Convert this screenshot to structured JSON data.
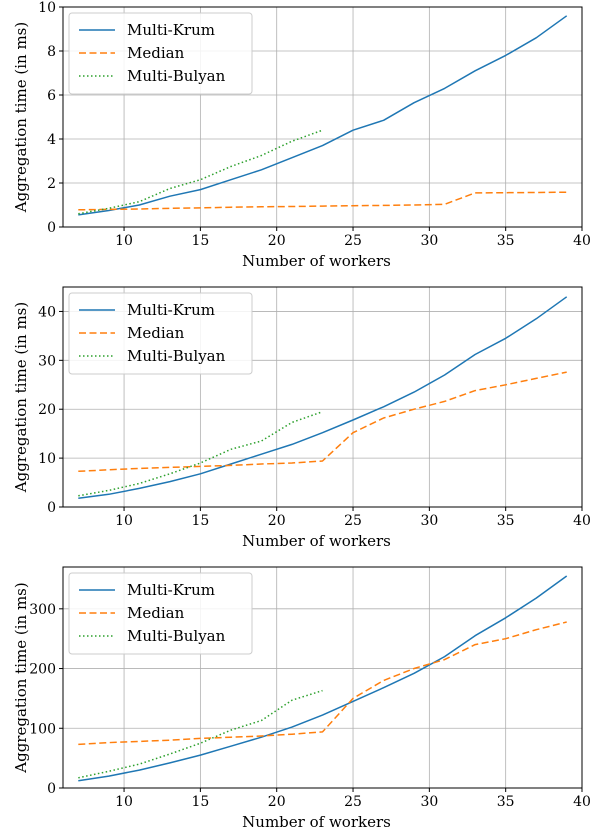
{
  "chart_data": [
    {
      "type": "line",
      "xlabel": "Number of workers",
      "ylabel": "Aggregation time (in ms)",
      "xlim": [
        6,
        40
      ],
      "ylim": [
        0,
        10
      ],
      "xticks": [
        10,
        15,
        20,
        25,
        30,
        35,
        40
      ],
      "yticks": [
        0,
        2,
        4,
        6,
        8,
        10
      ],
      "grid": true,
      "legend_position": "top-left",
      "series": [
        {
          "name": "Multi-Krum",
          "color": "#1f77b4",
          "style": "solid",
          "x": [
            7,
            9,
            11,
            13,
            15,
            17,
            19,
            21,
            23,
            25,
            27,
            29,
            31,
            33,
            35,
            37,
            39
          ],
          "y": [
            0.55,
            0.75,
            1.0,
            1.4,
            1.7,
            2.15,
            2.6,
            3.15,
            3.7,
            4.4,
            4.85,
            5.65,
            6.3,
            7.1,
            7.8,
            8.6,
            9.6
          ]
        },
        {
          "name": "Median",
          "color": "#ff7f0e",
          "style": "dashed",
          "x": [
            7,
            9,
            11,
            13,
            15,
            17,
            19,
            21,
            23,
            25,
            27,
            29,
            31,
            33,
            35,
            37,
            39
          ],
          "y": [
            0.78,
            0.8,
            0.82,
            0.85,
            0.87,
            0.9,
            0.92,
            0.93,
            0.95,
            0.97,
            0.98,
            1.0,
            1.03,
            1.55,
            1.56,
            1.57,
            1.58
          ]
        },
        {
          "name": "Multi-Bulyan",
          "color": "#2ca02c",
          "style": "dotted",
          "x": [
            7,
            9,
            11,
            13,
            15,
            17,
            19,
            21,
            23
          ],
          "y": [
            0.6,
            0.85,
            1.15,
            1.75,
            2.15,
            2.75,
            3.25,
            3.9,
            4.4
          ]
        }
      ]
    },
    {
      "type": "line",
      "xlabel": "Number of workers",
      "ylabel": "Aggregation time (in ms)",
      "xlim": [
        6,
        40
      ],
      "ylim": [
        0,
        45
      ],
      "xticks": [
        10,
        15,
        20,
        25,
        30,
        35,
        40
      ],
      "yticks": [
        0,
        10,
        20,
        30,
        40
      ],
      "grid": true,
      "legend_position": "top-left",
      "series": [
        {
          "name": "Multi-Krum",
          "color": "#1f77b4",
          "style": "solid",
          "x": [
            7,
            9,
            11,
            13,
            15,
            17,
            19,
            21,
            23,
            25,
            27,
            29,
            31,
            33,
            35,
            37,
            39
          ],
          "y": [
            1.8,
            2.6,
            3.8,
            5.2,
            6.8,
            8.8,
            10.8,
            12.8,
            15.2,
            17.8,
            20.5,
            23.5,
            27.0,
            31.2,
            34.5,
            38.5,
            43.0
          ]
        },
        {
          "name": "Median",
          "color": "#ff7f0e",
          "style": "dashed",
          "x": [
            7,
            9,
            11,
            13,
            15,
            17,
            19,
            21,
            23,
            25,
            27,
            29,
            31,
            33,
            35,
            37,
            39
          ],
          "y": [
            7.3,
            7.6,
            7.9,
            8.1,
            8.3,
            8.5,
            8.8,
            9.0,
            9.4,
            15.2,
            18.2,
            20.0,
            21.6,
            23.8,
            25.0,
            26.3,
            27.6
          ]
        },
        {
          "name": "Multi-Bulyan",
          "color": "#2ca02c",
          "style": "dotted",
          "x": [
            7,
            9,
            11,
            13,
            15,
            17,
            19,
            21,
            23
          ],
          "y": [
            2.3,
            3.4,
            4.8,
            6.8,
            9.0,
            11.8,
            13.5,
            17.3,
            19.5
          ]
        }
      ]
    },
    {
      "type": "line",
      "xlabel": "Number of workers",
      "ylabel": "Aggregation time (in ms)",
      "xlim": [
        6,
        40
      ],
      "ylim": [
        0,
        370
      ],
      "xticks": [
        10,
        15,
        20,
        25,
        30,
        35,
        40
      ],
      "yticks": [
        0,
        100,
        200,
        300
      ],
      "grid": true,
      "legend_position": "top-left",
      "series": [
        {
          "name": "Multi-Krum",
          "color": "#1f77b4",
          "style": "solid",
          "x": [
            7,
            9,
            11,
            13,
            15,
            17,
            19,
            21,
            23,
            25,
            27,
            29,
            31,
            33,
            35,
            37,
            39
          ],
          "y": [
            12,
            20,
            30,
            42,
            55,
            70,
            85,
            102,
            122,
            145,
            168,
            192,
            220,
            255,
            285,
            318,
            355
          ]
        },
        {
          "name": "Median",
          "color": "#ff7f0e",
          "style": "dashed",
          "x": [
            7,
            9,
            11,
            13,
            15,
            17,
            19,
            21,
            23,
            25,
            27,
            29,
            31,
            33,
            35,
            37,
            39
          ],
          "y": [
            73,
            76,
            78,
            80,
            83,
            85,
            87,
            90,
            94,
            150,
            180,
            200,
            215,
            240,
            250,
            265,
            278
          ]
        },
        {
          "name": "Multi-Bulyan",
          "color": "#2ca02c",
          "style": "dotted",
          "x": [
            7,
            9,
            11,
            13,
            15,
            17,
            19,
            21,
            23
          ],
          "y": [
            17,
            28,
            40,
            57,
            75,
            97,
            113,
            147,
            163
          ]
        }
      ]
    }
  ]
}
